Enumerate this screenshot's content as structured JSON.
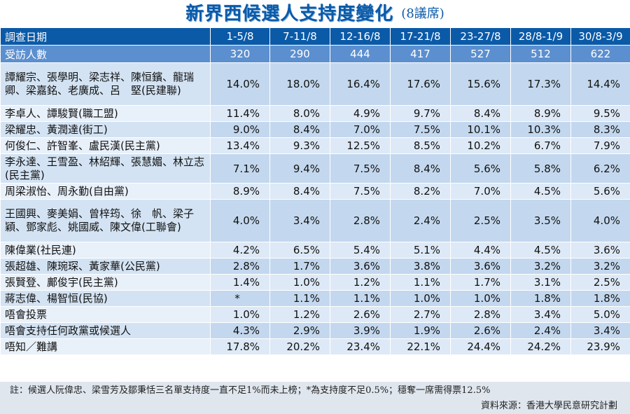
{
  "title": "新界西候選人支持度變化",
  "subtitle": "(8議席)",
  "chart_data": {
    "type": "table",
    "header_label": "調查日期",
    "dates": [
      "1-5/8",
      "7-11/8",
      "12-16/8",
      "17-21/8",
      "23-27/8",
      "28/8-1/9",
      "30/8-3/9"
    ],
    "respondents_label": "受訪人數",
    "respondents": [
      "320",
      "290",
      "444",
      "417",
      "527",
      "512",
      "622"
    ],
    "rows": [
      {
        "name": "譚耀宗、張學明、梁志祥、陳恒鑌、龍瑞卿、梁嘉銘、老廣成、呂　堅(民建聯)",
        "values": [
          "14.0%",
          "18.0%",
          "16.4%",
          "17.6%",
          "15.6%",
          "17.3%",
          "14.4%"
        ]
      },
      {
        "name": "李卓人、譚駿賢(職工盟)",
        "values": [
          "11.4%",
          "8.0%",
          "4.9%",
          "9.7%",
          "8.4%",
          "8.9%",
          "9.5%"
        ]
      },
      {
        "name": "梁耀忠、黃潤達(街工)",
        "values": [
          "9.0%",
          "8.4%",
          "7.0%",
          "7.5%",
          "10.1%",
          "10.3%",
          "8.3%"
        ]
      },
      {
        "name": "何俊仁、許智峯、盧民漢(民主黨)",
        "values": [
          "13.4%",
          "9.3%",
          "12.5%",
          "8.5%",
          "10.2%",
          "6.7%",
          "7.9%"
        ]
      },
      {
        "name": "李永達、王雪盈、林紹輝、張慧媚、林立志(民主黨)",
        "values": [
          "7.1%",
          "9.4%",
          "7.5%",
          "8.4%",
          "5.6%",
          "5.8%",
          "6.2%"
        ]
      },
      {
        "name": "周梁淑怡、周永勤(自由黨)",
        "values": [
          "8.9%",
          "8.4%",
          "7.5%",
          "8.2%",
          "7.0%",
          "4.5%",
          "5.6%"
        ]
      },
      {
        "name": "王國興、麥美娟、曾梓筠、徐　帆、梁子穎、鄧家彪、姚國威、陳文偉(工聯會)",
        "values": [
          "4.0%",
          "3.4%",
          "2.8%",
          "2.4%",
          "2.5%",
          "3.5%",
          "4.0%"
        ]
      },
      {
        "name": "陳偉業(社民連)",
        "values": [
          "4.2%",
          "6.5%",
          "5.4%",
          "5.1%",
          "4.4%",
          "4.5%",
          "3.6%"
        ]
      },
      {
        "name": "張超雄、陳琬琛、黃家華(公民黨)",
        "values": [
          "2.8%",
          "1.7%",
          "3.6%",
          "3.8%",
          "3.6%",
          "3.2%",
          "3.2%"
        ]
      },
      {
        "name": "張賢登、鄺俊宇(民主黨)",
        "values": [
          "1.4%",
          "1.0%",
          "1.2%",
          "1.1%",
          "1.7%",
          "3.1%",
          "2.5%"
        ]
      },
      {
        "name": "蔣志偉、楊智恒(民協)",
        "values": [
          "*",
          "1.1%",
          "1.1%",
          "1.0%",
          "1.0%",
          "1.8%",
          "1.8%"
        ]
      },
      {
        "name": "唔會投票",
        "values": [
          "1.0%",
          "1.2%",
          "2.6%",
          "2.7%",
          "2.8%",
          "3.4%",
          "5.0%"
        ]
      },
      {
        "name": "唔會支持任何政黨或候選人",
        "values": [
          "4.3%",
          "2.9%",
          "3.9%",
          "1.9%",
          "2.6%",
          "2.4%",
          "3.4%"
        ]
      },
      {
        "name": "唔知／難講",
        "values": [
          "17.8%",
          "20.2%",
          "23.4%",
          "22.1%",
          "24.4%",
          "24.2%",
          "23.9%"
        ]
      }
    ]
  },
  "footer": {
    "note": "註：候選人阮偉忠、梁雪芳及鄒秉恬三名單支持度一直不足1%而未上榜；*為支持度不足0.5%；穩奪一席需得票12.5%",
    "source": "資料來源：香港大學民意研究計劃"
  },
  "colors": {
    "header_bg": "#0b5aa8",
    "count_bg": "#5b8fcf",
    "row_dark": "#c3d8ee",
    "row_light": "#dde9f6",
    "title": "#0b5aa8"
  }
}
